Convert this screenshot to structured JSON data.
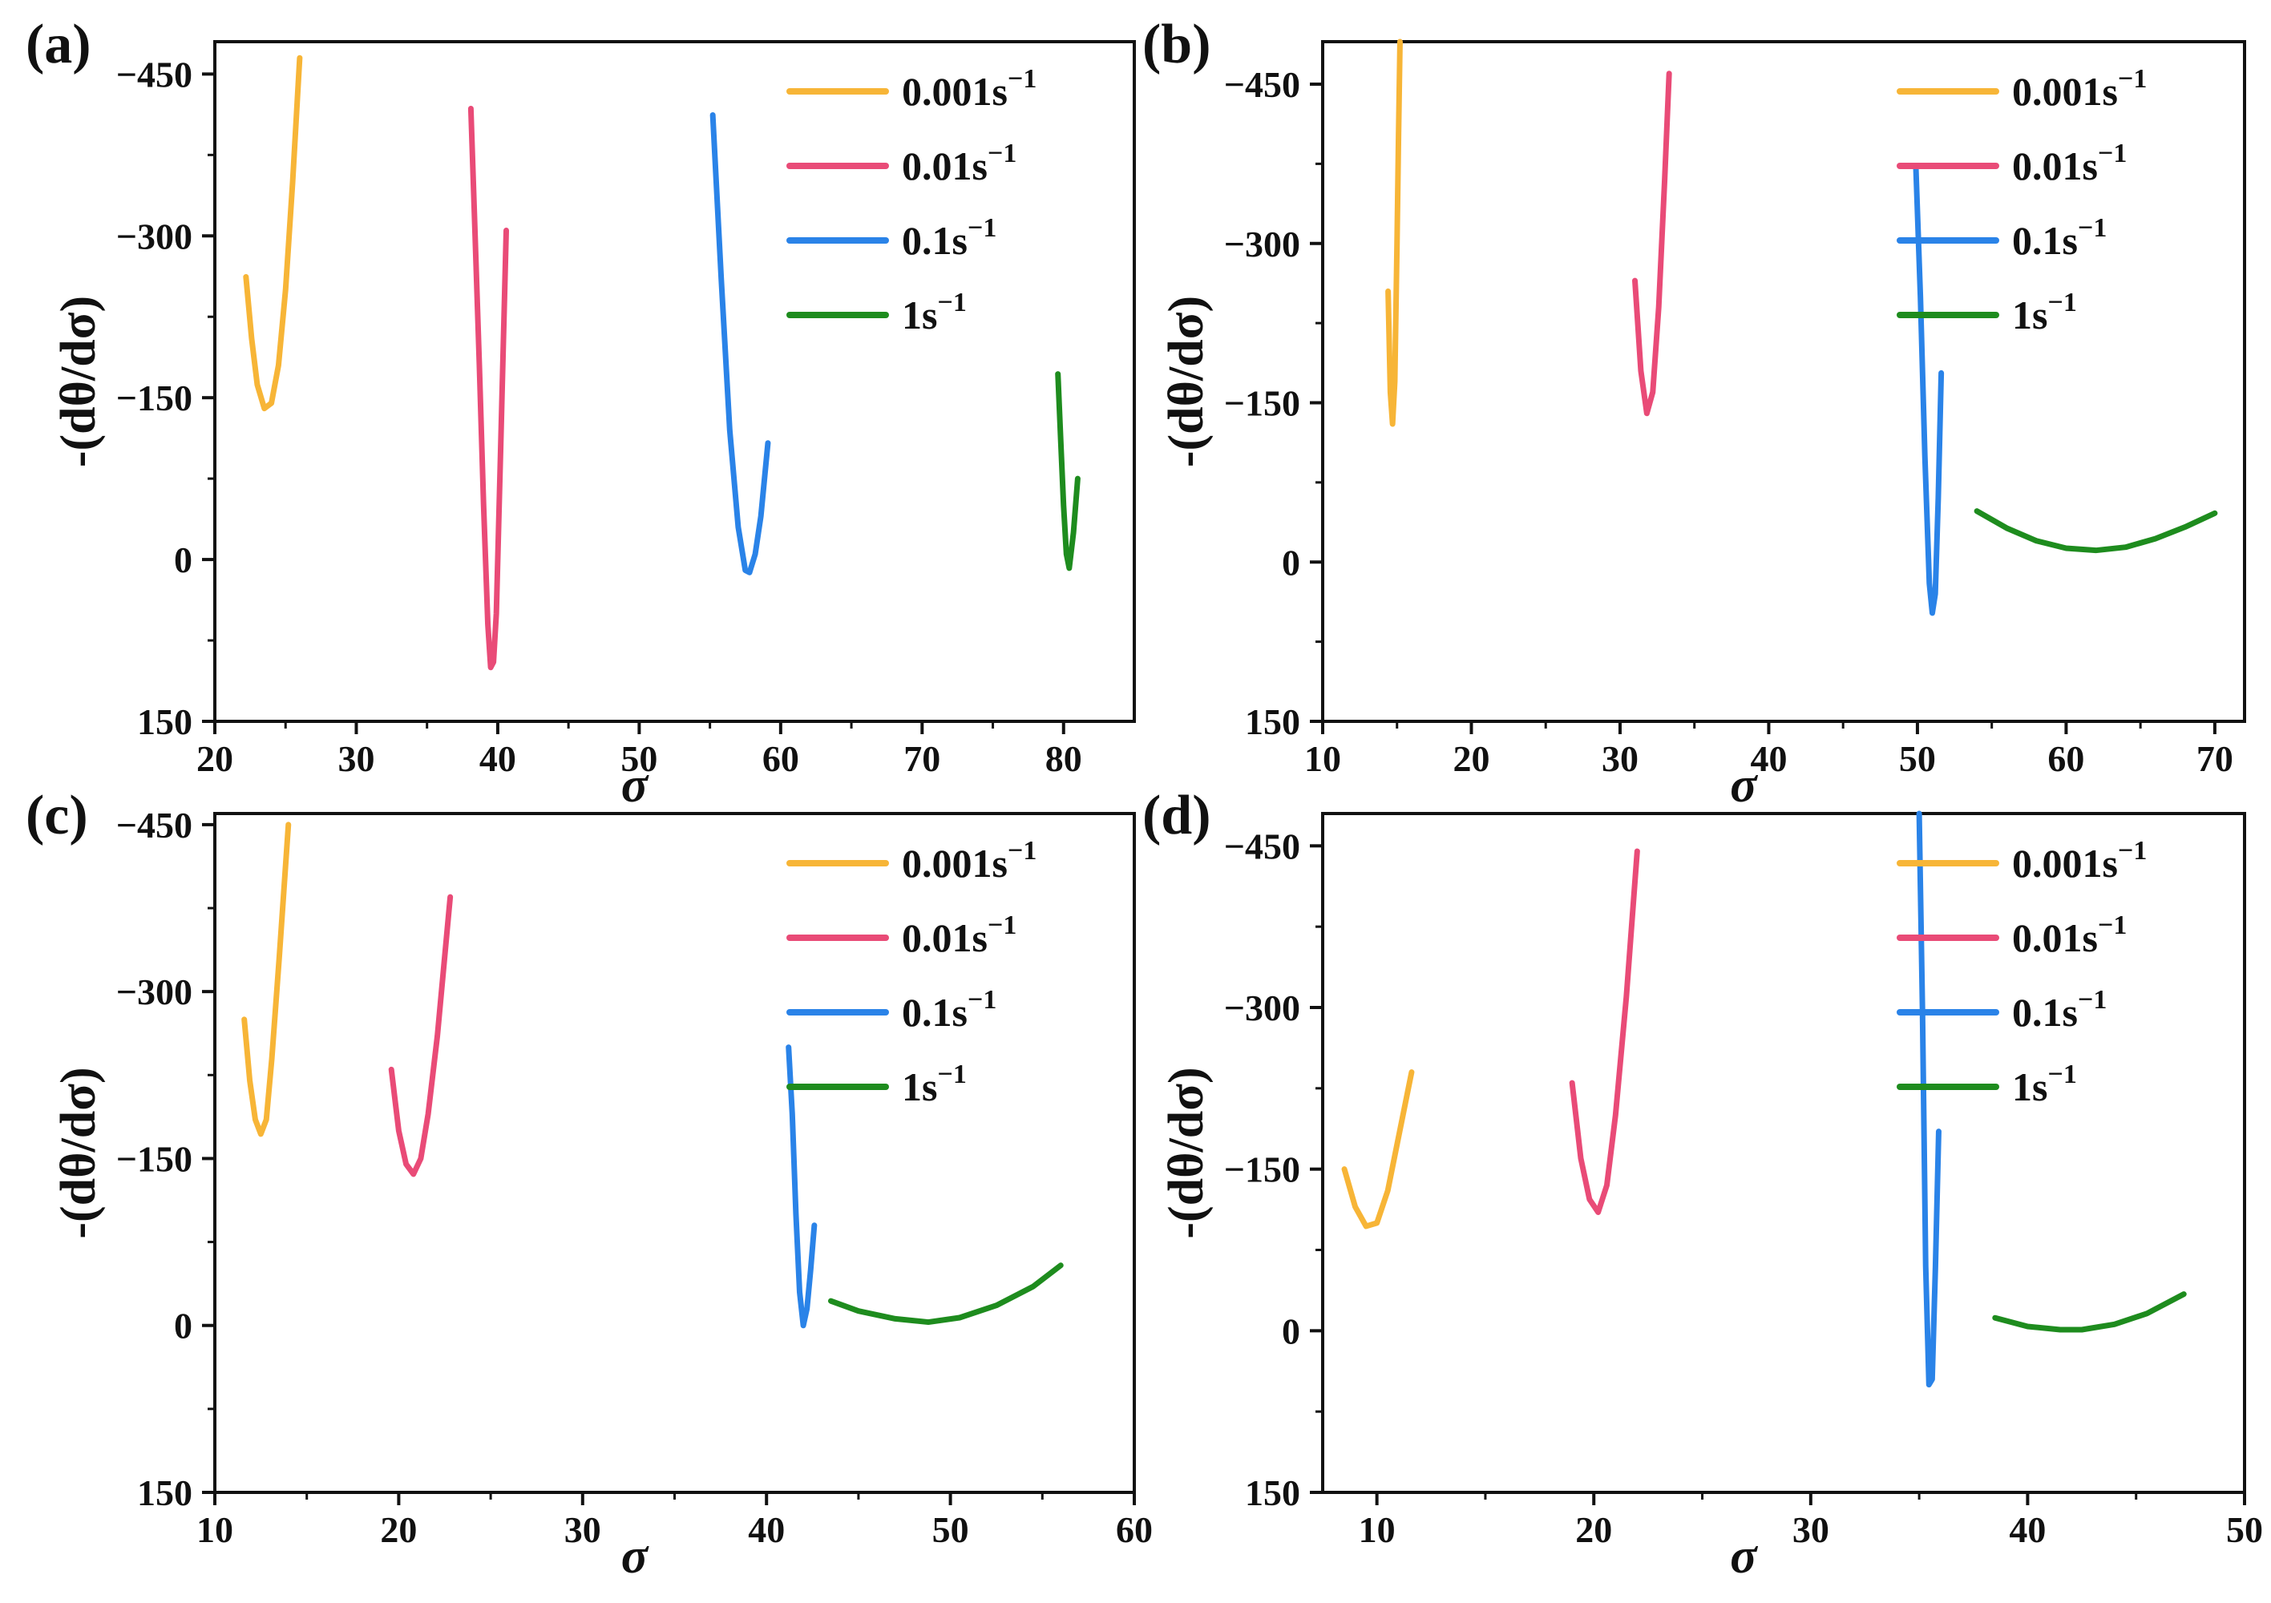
{
  "chart_data": [
    {
      "panel_label": "(a)",
      "type": "line",
      "xlabel": "σ",
      "ylabel": "-(dθ/dσ)",
      "xlim": [
        20,
        85
      ],
      "ylim": [
        150,
        -480
      ],
      "xticks": [
        20,
        30,
        40,
        50,
        60,
        70,
        80
      ],
      "yticks": [
        150,
        0,
        -150,
        -300,
        -450
      ],
      "ytick_labels": [
        "150",
        "0",
        "-150",
        "-300",
        "-450"
      ],
      "legend": {
        "position": "top-right"
      },
      "series": [
        {
          "name": "0.001s⁻¹",
          "label_main": "0.001s",
          "label_sup": "−1",
          "color": "#F7B537",
          "x": [
            22.2,
            22.6,
            23.0,
            23.5,
            24.0,
            24.5,
            25.0,
            25.5,
            26.0
          ],
          "y": [
            -262,
            -205,
            -162,
            -140,
            -145,
            -180,
            -250,
            -350,
            -465
          ]
        },
        {
          "name": "0.01s⁻¹",
          "label_main": "0.01s",
          "label_sup": "−1",
          "color": "#E94B77",
          "x": [
            38.1,
            38.4,
            38.7,
            39.0,
            39.3,
            39.5,
            39.7,
            39.9,
            40.2,
            40.6
          ],
          "y": [
            -418,
            -300,
            -180,
            -50,
            60,
            100,
            95,
            50,
            -100,
            -305
          ]
        },
        {
          "name": "0.1s⁻¹",
          "label_main": "0.1s",
          "label_sup": "−1",
          "color": "#2A83E8",
          "x": [
            55.2,
            55.8,
            56.4,
            57.0,
            57.5,
            57.8,
            58.2,
            58.6,
            59.1
          ],
          "y": [
            -412,
            -260,
            -120,
            -30,
            10,
            12,
            -5,
            -40,
            -108
          ]
        },
        {
          "name": "1s⁻¹",
          "label_main": "1s",
          "label_sup": "−1",
          "color": "#1E8C1E",
          "x": [
            79.6,
            79.8,
            80.0,
            80.2,
            80.4,
            80.7,
            81.0
          ],
          "y": [
            -172,
            -110,
            -50,
            -5,
            8,
            -25,
            -75
          ]
        }
      ]
    },
    {
      "panel_label": "(b)",
      "type": "line",
      "xlabel": "σ",
      "ylabel": "-(dθ/dσ)",
      "xlim": [
        10,
        72
      ],
      "ylim": [
        150,
        -490
      ],
      "xticks": [
        10,
        20,
        30,
        40,
        50,
        60,
        70
      ],
      "yticks": [
        150,
        0,
        -150,
        -300,
        -450
      ],
      "ytick_labels": [
        "150",
        "0",
        "-150",
        "-300",
        "-450"
      ],
      "legend": {
        "position": "top-right"
      },
      "series": [
        {
          "name": "0.001s⁻¹",
          "label_main": "0.001s",
          "label_sup": "−1",
          "color": "#F7B537",
          "x": [
            14.4,
            14.55,
            14.7,
            14.85,
            15.0,
            15.1,
            15.2
          ],
          "y": [
            -255,
            -160,
            -130,
            -170,
            -300,
            -400,
            -490
          ]
        },
        {
          "name": "0.01s⁻¹",
          "label_main": "0.01s",
          "label_sup": "−1",
          "color": "#E94B77",
          "x": [
            31.0,
            31.4,
            31.8,
            32.2,
            32.6,
            33.0,
            33.3
          ],
          "y": [
            -265,
            -180,
            -140,
            -160,
            -240,
            -360,
            -460
          ]
        },
        {
          "name": "0.1s⁻¹",
          "label_main": "0.1s",
          "label_sup": "−1",
          "color": "#2A83E8",
          "x": [
            49.9,
            50.2,
            50.5,
            50.8,
            51.0,
            51.2,
            51.4,
            51.6
          ],
          "y": [
            -370,
            -250,
            -100,
            20,
            48,
            30,
            -60,
            -178
          ]
        },
        {
          "name": "1s⁻¹",
          "label_main": "1s",
          "label_sup": "−1",
          "color": "#1E8C1E",
          "x": [
            54,
            56,
            58,
            60,
            62,
            64,
            66,
            68,
            70
          ],
          "y": [
            -48,
            -32,
            -20,
            -13,
            -11,
            -14,
            -22,
            -33,
            -46
          ]
        }
      ]
    },
    {
      "panel_label": "(c)",
      "type": "line",
      "xlabel": "σ",
      "ylabel": "-(dθ/dσ)",
      "xlim": [
        10,
        60
      ],
      "ylim": [
        150,
        -460
      ],
      "xticks": [
        10,
        20,
        30,
        40,
        50,
        60
      ],
      "yticks": [
        150,
        0,
        -150,
        -300,
        -450
      ],
      "ytick_labels": [
        "150",
        "0",
        "-150",
        "-300",
        "-450"
      ],
      "legend": {
        "position": "top-right"
      },
      "series": [
        {
          "name": "0.001s⁻¹",
          "label_main": "0.001s",
          "label_sup": "−1",
          "color": "#F7B537",
          "x": [
            11.6,
            11.9,
            12.2,
            12.5,
            12.8,
            13.1,
            13.5,
            14.0
          ],
          "y": [
            -275,
            -220,
            -185,
            -172,
            -185,
            -240,
            -330,
            -450
          ]
        },
        {
          "name": "0.01s⁻¹",
          "label_main": "0.01s",
          "label_sup": "−1",
          "color": "#E94B77",
          "x": [
            19.6,
            20.0,
            20.4,
            20.8,
            21.2,
            21.6,
            22.1,
            22.8
          ],
          "y": [
            -230,
            -175,
            -145,
            -136,
            -150,
            -190,
            -260,
            -385
          ]
        },
        {
          "name": "0.1s⁻¹",
          "label_main": "0.1s",
          "label_sup": "−1",
          "color": "#2A83E8",
          "x": [
            41.2,
            41.4,
            41.6,
            41.8,
            42.0,
            42.2,
            42.4,
            42.6
          ],
          "y": [
            -250,
            -190,
            -100,
            -30,
            0,
            -15,
            -50,
            -90
          ]
        },
        {
          "name": "1s⁻¹",
          "label_main": "1s",
          "label_sup": "−1",
          "color": "#1E8C1E",
          "x": [
            43.5,
            45,
            47,
            48.8,
            50.5,
            52.5,
            54.5,
            56.0
          ],
          "y": [
            -22,
            -13,
            -6,
            -3,
            -7,
            -18,
            -35,
            -54
          ]
        }
      ]
    },
    {
      "panel_label": "(d)",
      "type": "line",
      "xlabel": "σ",
      "ylabel": "-(dθ/dσ)",
      "xlim": [
        7.5,
        50
      ],
      "ylim": [
        150,
        -480
      ],
      "xticks": [
        10,
        20,
        30,
        40,
        50
      ],
      "yticks": [
        150,
        0,
        -150,
        -300,
        -450
      ],
      "ytick_labels": [
        "150",
        "0",
        "-150",
        "-300",
        "-450"
      ],
      "legend": {
        "position": "top-right"
      },
      "series": [
        {
          "name": "0.001s⁻¹",
          "label_main": "0.001s",
          "label_sup": "−1",
          "color": "#F7B537",
          "x": [
            8.5,
            9.0,
            9.5,
            10.0,
            10.5,
            11.0,
            11.6
          ],
          "y": [
            -150,
            -115,
            -97,
            -100,
            -130,
            -180,
            -240
          ]
        },
        {
          "name": "0.01s⁻¹",
          "label_main": "0.01s",
          "label_sup": "−1",
          "color": "#E94B77",
          "x": [
            19.0,
            19.4,
            19.8,
            20.2,
            20.6,
            21.0,
            21.5,
            22.0
          ],
          "y": [
            -230,
            -160,
            -122,
            -110,
            -135,
            -200,
            -310,
            -445
          ]
        },
        {
          "name": "0.1s⁻¹",
          "label_main": "0.1s",
          "label_sup": "−1",
          "color": "#2A83E8",
          "x": [
            35.0,
            35.15,
            35.3,
            35.45,
            35.6,
            35.75,
            35.9
          ],
          "y": [
            -480,
            -300,
            -60,
            50,
            45,
            -60,
            -185
          ]
        },
        {
          "name": "1s⁻¹",
          "label_main": "1s",
          "label_sup": "−1",
          "color": "#1E8C1E",
          "x": [
            38.5,
            40,
            41.5,
            42.5,
            44,
            45.5,
            47.2
          ],
          "y": [
            -12,
            -4,
            -1,
            -1,
            -6,
            -16,
            -34
          ]
        }
      ]
    }
  ]
}
